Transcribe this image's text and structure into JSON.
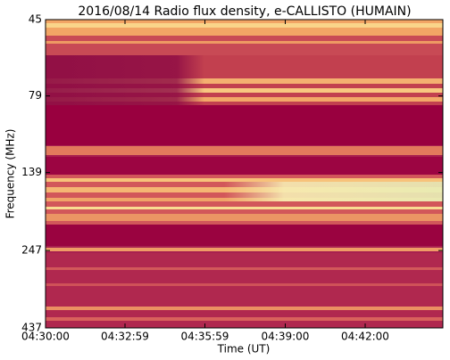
{
  "chart_data": {
    "type": "spectrogram",
    "title": "2016/08/14  Radio flux density, e-CALLISTO (HUMAIN)",
    "xlabel": "Time (UT)",
    "ylabel": "Frequency (MHz)",
    "xlim": [
      "04:30:00",
      "04:44:55"
    ],
    "xticks": [
      "04:30:00",
      "04:32:59",
      "04:35:59",
      "04:39:00",
      "04:42:00"
    ],
    "ylim": [
      45,
      437
    ],
    "yticks": [
      45,
      79,
      139,
      247,
      437
    ],
    "yscale": "log",
    "yinverted": true
  }
}
